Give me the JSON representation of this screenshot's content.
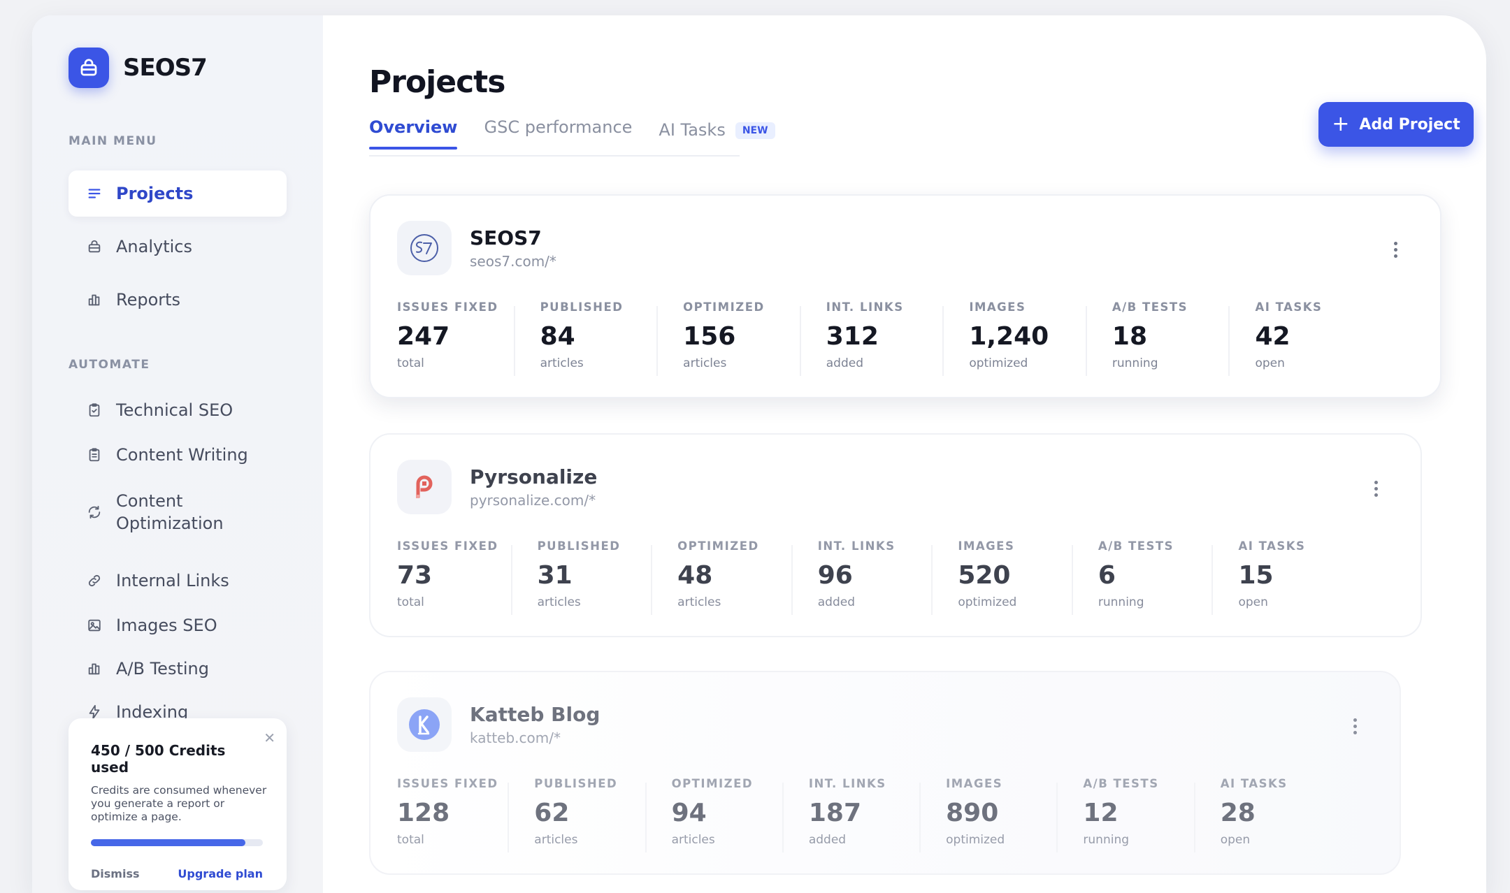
{
  "app": {
    "name": "SEOS7",
    "brand_color": "#3b55e6"
  },
  "sidebar": {
    "main_menu_label": "MAIN MENU",
    "main_items": [
      {
        "label": "Projects",
        "icon": "list-icon",
        "active": true
      },
      {
        "label": "Analytics",
        "icon": "briefcase-icon",
        "active": false
      },
      {
        "label": "Reports",
        "icon": "bar-chart-icon",
        "active": false
      }
    ],
    "automate_label": "AUTOMATE",
    "automate_items": [
      {
        "label": "Technical SEO",
        "icon": "clipboard-check-icon"
      },
      {
        "label": "Content Writing",
        "icon": "clipboard-text-icon"
      },
      {
        "label": "Content Optimization",
        "icon": "refresh-icon"
      },
      {
        "label": "Internal Links",
        "icon": "link-icon"
      },
      {
        "label": "Images SEO",
        "icon": "image-icon"
      },
      {
        "label": "A/B Testing",
        "icon": "bar-chart-icon"
      },
      {
        "label": "Indexing",
        "icon": "lightning-icon"
      }
    ],
    "credits": {
      "title": "450 / 500 Credits used",
      "description": "Credits are consumed whenever you generate a report or optimize a page.",
      "used": 450,
      "total": 500,
      "progress_fraction": 0.9,
      "dismiss_label": "Dismiss",
      "upgrade_label": "Upgrade plan",
      "close_glyph": "✕"
    }
  },
  "main": {
    "title": "Projects",
    "tabs": [
      {
        "label": "Overview",
        "active": true
      },
      {
        "label": "GSC performance",
        "active": false
      },
      {
        "label": "AI Tasks",
        "active": false,
        "badge": "NEW"
      }
    ],
    "add_button_label": "Add Project",
    "projects": [
      {
        "name": "SEOS7",
        "domain": "seos7.com/*",
        "logo_icon": "seos7-logo-icon",
        "stats": [
          {
            "label": "ISSUES FIXED",
            "value": "247",
            "sub": "total"
          },
          {
            "label": "PUBLISHED",
            "value": "84",
            "sub": "articles"
          },
          {
            "label": "OPTIMIZED",
            "value": "156",
            "sub": "articles"
          },
          {
            "label": "INT. LINKS",
            "value": "312",
            "sub": "added"
          },
          {
            "label": "IMAGES",
            "value": "1,240",
            "sub": "optimized"
          },
          {
            "label": "A/B TESTS",
            "value": "18",
            "sub": "running"
          },
          {
            "label": "AI TASKS",
            "value": "42",
            "sub": "open"
          }
        ]
      },
      {
        "name": "Pyrsonalize",
        "domain": "pyrsonalize.com/*",
        "logo_icon": "pyrsonalize-logo-icon",
        "stats": [
          {
            "label": "ISSUES FIXED",
            "value": "73",
            "sub": "total"
          },
          {
            "label": "PUBLISHED",
            "value": "31",
            "sub": "articles"
          },
          {
            "label": "OPTIMIZED",
            "value": "48",
            "sub": "articles"
          },
          {
            "label": "INT. LINKS",
            "value": "96",
            "sub": "added"
          },
          {
            "label": "IMAGES",
            "value": "520",
            "sub": "optimized"
          },
          {
            "label": "A/B TESTS",
            "value": "6",
            "sub": "running"
          },
          {
            "label": "AI TASKS",
            "value": "15",
            "sub": "open"
          }
        ]
      },
      {
        "name": "Katteb Blog",
        "domain": "katteb.com/*",
        "logo_icon": "katteb-logo-icon",
        "stats": [
          {
            "label": "ISSUES FIXED",
            "value": "128",
            "sub": "total"
          },
          {
            "label": "PUBLISHED",
            "value": "62",
            "sub": "articles"
          },
          {
            "label": "OPTIMIZED",
            "value": "94",
            "sub": "articles"
          },
          {
            "label": "INT. LINKS",
            "value": "187",
            "sub": "added"
          },
          {
            "label": "IMAGES",
            "value": "890",
            "sub": "optimized"
          },
          {
            "label": "A/B TESTS",
            "value": "12",
            "sub": "running"
          },
          {
            "label": "AI TASKS",
            "value": "28",
            "sub": "open"
          }
        ]
      }
    ]
  }
}
